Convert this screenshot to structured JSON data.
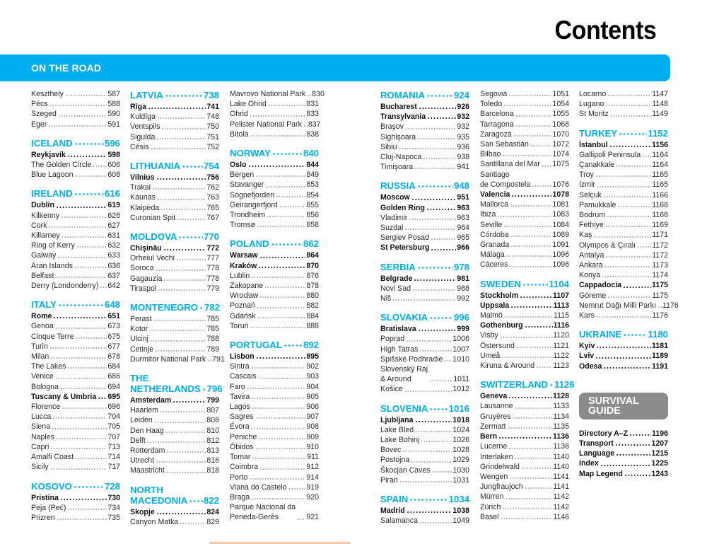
{
  "page_title": "Contents",
  "banner": {
    "label": "ON THE ROAD",
    "color": "#00aeef"
  },
  "survival_color": "#8a8b8c",
  "columns": [
    [
      {
        "name": "Keszthely",
        "page": "587"
      },
      {
        "name": "Pécs",
        "page": "588"
      },
      {
        "name": "Szeged",
        "page": "590"
      },
      {
        "name": "Eger",
        "page": "591"
      },
      {
        "section": "ICELAND",
        "page": "596"
      },
      {
        "name": "Reykjavík",
        "page": "598",
        "bold": true
      },
      {
        "name": "The Golden Circle",
        "page": "606"
      },
      {
        "name": "Blue Lagoon",
        "page": "608"
      },
      {
        "section": "IRELAND",
        "page": "616"
      },
      {
        "name": "Dublin",
        "page": "619",
        "bold": true
      },
      {
        "name": "Kilkenny",
        "page": "626"
      },
      {
        "name": "Cork",
        "page": "627"
      },
      {
        "name": "Killarney",
        "page": "631"
      },
      {
        "name": "Ring of Kerry",
        "page": "632"
      },
      {
        "name": "Galway",
        "page": "633"
      },
      {
        "name": "Aran Islands",
        "page": "636"
      },
      {
        "name": "Belfast",
        "page": "637"
      },
      {
        "name": "Derry (Londonderry)",
        "page": "642"
      },
      {
        "section": "ITALY",
        "page": "648"
      },
      {
        "name": "Rome",
        "page": "651",
        "bold": true
      },
      {
        "name": "Genoa",
        "page": "673"
      },
      {
        "name": "Cinque Terre",
        "page": "675"
      },
      {
        "name": "Turin",
        "page": "677"
      },
      {
        "name": "Milan",
        "page": "678"
      },
      {
        "name": "The Lakes",
        "page": "684"
      },
      {
        "name": "Venice",
        "page": "686"
      },
      {
        "name": "Bologna",
        "page": "694"
      },
      {
        "name": "Tuscany & Umbria",
        "page": "695",
        "bold": true
      },
      {
        "name": "Florence",
        "page": "696"
      },
      {
        "name": "Lucca",
        "page": "704"
      },
      {
        "name": "Siena",
        "page": "705"
      },
      {
        "name": "Naples",
        "page": "707"
      },
      {
        "name": "Capri",
        "page": "713"
      },
      {
        "name": "Amalfi Coast",
        "page": "714"
      },
      {
        "name": "Sicily",
        "page": "717"
      },
      {
        "section": "KOSOVO",
        "page": "728"
      },
      {
        "name": "Pristina",
        "page": "730",
        "bold": true
      },
      {
        "name": "Peja (Peć)",
        "page": "734"
      },
      {
        "name": "Prizren",
        "page": "735"
      }
    ],
    [
      {
        "section": "LATVIA",
        "page": "738"
      },
      {
        "name": "Rīga",
        "page": "741",
        "bold": true
      },
      {
        "name": "Kuldīga",
        "page": "748"
      },
      {
        "name": "Ventspils",
        "page": "750"
      },
      {
        "name": "Sigulda",
        "page": "751"
      },
      {
        "name": "Cēsis",
        "page": "752"
      },
      {
        "section": "LITHUANIA",
        "page": "754"
      },
      {
        "name": "Vilnius",
        "page": "756",
        "bold": true
      },
      {
        "name": "Trakai",
        "page": "762"
      },
      {
        "name": "Kaunas",
        "page": "763"
      },
      {
        "name": "Klaipėda",
        "page": "765"
      },
      {
        "name": "Curonian Spit",
        "page": "767"
      },
      {
        "section": "MOLDOVA",
        "page": "770"
      },
      {
        "name": "Chişinău",
        "page": "772",
        "bold": true
      },
      {
        "name": "Orheiul Vechi",
        "page": "777"
      },
      {
        "name": "Soroca",
        "page": "778"
      },
      {
        "name": "Gagauzia",
        "page": "778"
      },
      {
        "name": "Tiraspol",
        "page": "779"
      },
      {
        "section": "MONTENEGRO",
        "page": "782"
      },
      {
        "name": "Perast",
        "page": "785"
      },
      {
        "name": "Kotor",
        "page": "785"
      },
      {
        "name": "Ulcinj",
        "page": "788"
      },
      {
        "name": "Cetinje",
        "page": "789"
      },
      {
        "name": "Durmitor National Park",
        "page": "791"
      },
      {
        "section": "THE\nNETHERLANDS",
        "page": "796"
      },
      {
        "name": "Amsterdam",
        "page": "799",
        "bold": true
      },
      {
        "name": "Haarlem",
        "page": "807"
      },
      {
        "name": "Leiden",
        "page": "808"
      },
      {
        "name": "Den Haag",
        "page": "810"
      },
      {
        "name": "Delft",
        "page": "812"
      },
      {
        "name": "Rotterdam",
        "page": "813"
      },
      {
        "name": "Utrecht",
        "page": "816"
      },
      {
        "name": "Maastricht",
        "page": "818"
      },
      {
        "section": "NORTH\nMACEDONIA",
        "page": "822"
      },
      {
        "name": "Skopje",
        "page": "824",
        "bold": true
      },
      {
        "name": "Canyon Matka",
        "page": "829"
      }
    ],
    [
      {
        "name": "Mavrovo National Park",
        "page": "830"
      },
      {
        "name": "Lake Ohrid",
        "page": "831"
      },
      {
        "name": "Ohrid",
        "page": "833"
      },
      {
        "name": "Pelister National Park",
        "page": "837"
      },
      {
        "name": "Bitola",
        "page": "838"
      },
      {
        "section": "NORWAY",
        "page": "840"
      },
      {
        "name": "Oslo",
        "page": "844",
        "bold": true
      },
      {
        "name": "Bergen",
        "page": "849"
      },
      {
        "name": "Stavanger",
        "page": "853"
      },
      {
        "name": "Sognefjorden",
        "page": "854"
      },
      {
        "name": "Geirangerfjord",
        "page": "855"
      },
      {
        "name": "Trondheim",
        "page": "856"
      },
      {
        "name": "Tromsø",
        "page": "858"
      },
      {
        "section": "POLAND",
        "page": "862"
      },
      {
        "name": "Warsaw",
        "page": "864",
        "bold": true
      },
      {
        "name": "Kraków",
        "page": "870",
        "bold": true
      },
      {
        "name": "Lublin",
        "page": "876"
      },
      {
        "name": "Zakopane",
        "page": "878"
      },
      {
        "name": "Wrocław",
        "page": "880"
      },
      {
        "name": "Poznań",
        "page": "882"
      },
      {
        "name": "Gdańsk",
        "page": "884"
      },
      {
        "name": "Toruń",
        "page": "888"
      },
      {
        "section": "PORTUGAL",
        "page": "892"
      },
      {
        "name": "Lisbon",
        "page": "895",
        "bold": true
      },
      {
        "name": "Sintra",
        "page": "902"
      },
      {
        "name": "Cascais",
        "page": "903"
      },
      {
        "name": "Faro",
        "page": "904"
      },
      {
        "name": "Tavira",
        "page": "905"
      },
      {
        "name": "Lagos",
        "page": "906"
      },
      {
        "name": "Sagres",
        "page": "907"
      },
      {
        "name": "Évora",
        "page": "908"
      },
      {
        "name": "Peniche",
        "page": "909"
      },
      {
        "name": "Óbidos",
        "page": "910"
      },
      {
        "name": "Tomar",
        "page": "911"
      },
      {
        "name": "Coimbra",
        "page": "912"
      },
      {
        "name": "Porto",
        "page": "914"
      },
      {
        "name": "Viana do Castelo",
        "page": "919"
      },
      {
        "name": "Braga",
        "page": "920"
      },
      {
        "name": "Parque Nacional da\nPeneda-Gerês",
        "page": "921"
      }
    ],
    [
      {
        "section": "ROMANIA",
        "page": "924"
      },
      {
        "name": "Bucharest",
        "page": "926",
        "bold": true
      },
      {
        "name": "Transylvania",
        "page": "932",
        "bold": true
      },
      {
        "name": "Braşov",
        "page": "932"
      },
      {
        "name": "Sighişoara",
        "page": "935"
      },
      {
        "name": "Sibiu",
        "page": "936"
      },
      {
        "name": "Cluj-Napoca",
        "page": "938"
      },
      {
        "name": "Timişoara",
        "page": "941"
      },
      {
        "section": "RUSSIA",
        "page": "948"
      },
      {
        "name": "Moscow",
        "page": "951",
        "bold": true
      },
      {
        "name": "Golden Ring",
        "page": "963",
        "bold": true
      },
      {
        "name": "Vladimir",
        "page": "963"
      },
      {
        "name": "Suzdal",
        "page": "964"
      },
      {
        "name": "Sergiev Posad",
        "page": "965"
      },
      {
        "name": "St Petersburg",
        "page": "966",
        "bold": true
      },
      {
        "section": "SERBIA",
        "page": "978"
      },
      {
        "name": "Belgrade",
        "page": "981",
        "bold": true
      },
      {
        "name": "Novi Sad",
        "page": "988"
      },
      {
        "name": "Niš",
        "page": "992"
      },
      {
        "section": "SLOVAKIA",
        "page": "996"
      },
      {
        "name": "Bratislava",
        "page": "999",
        "bold": true
      },
      {
        "name": "Poprad",
        "page": "1006"
      },
      {
        "name": "High Tatras",
        "page": "1007"
      },
      {
        "name": "Spišské Podhradie",
        "page": "1010"
      },
      {
        "name": "Slovenský Raj\n& Around",
        "page": "1011"
      },
      {
        "name": "Košice",
        "page": "1012"
      },
      {
        "section": "SLOVENIA",
        "page": "1016"
      },
      {
        "name": "Ljubljana",
        "page": "1018",
        "bold": true
      },
      {
        "name": "Lake Bled",
        "page": "1024"
      },
      {
        "name": "Lake Bohinj",
        "page": "1026"
      },
      {
        "name": "Bovec",
        "page": "1028"
      },
      {
        "name": "Postojna",
        "page": "1029"
      },
      {
        "name": "Škocjan Caves",
        "page": "1030"
      },
      {
        "name": "Piran",
        "page": "1031"
      },
      {
        "section": "SPAIN",
        "page": "1034"
      },
      {
        "name": "Madrid",
        "page": "1038",
        "bold": true
      },
      {
        "name": "Salamanca",
        "page": "1049"
      }
    ],
    [
      {
        "name": "Segovia",
        "page": "1051"
      },
      {
        "name": "Toledo",
        "page": "1054"
      },
      {
        "name": "Barcelona",
        "page": "1055"
      },
      {
        "name": "Tarragona",
        "page": "1068"
      },
      {
        "name": "Zaragoza",
        "page": "1070"
      },
      {
        "name": "San Sebastián",
        "page": "1072"
      },
      {
        "name": "Bilbao",
        "page": "1074"
      },
      {
        "name": "Santillana del Mar",
        "page": "1075"
      },
      {
        "name": "Santiago\nde Compostela",
        "page": "1076"
      },
      {
        "name": "Valencia",
        "page": "1078",
        "bold": true
      },
      {
        "name": "Mallorca",
        "page": "1081"
      },
      {
        "name": "Ibiza",
        "page": "1083"
      },
      {
        "name": "Seville",
        "page": "1084"
      },
      {
        "name": "Córdoba",
        "page": "1089"
      },
      {
        "name": "Granada",
        "page": "1091"
      },
      {
        "name": "Málaga",
        "page": "1096"
      },
      {
        "name": "Cáceres",
        "page": "1098"
      },
      {
        "section": "SWEDEN",
        "page": "1104"
      },
      {
        "name": "Stockholm",
        "page": "1107",
        "bold": true
      },
      {
        "name": "Uppsala",
        "page": "1113",
        "bold": true
      },
      {
        "name": "Malmö",
        "page": "1115"
      },
      {
        "name": "Gothenburg",
        "page": "1116",
        "bold": true
      },
      {
        "name": "Visby",
        "page": "1120"
      },
      {
        "name": "Östersund",
        "page": "1121"
      },
      {
        "name": "Umeå",
        "page": "1122"
      },
      {
        "name": "Kiruna & Around",
        "page": "1123"
      },
      {
        "section": "SWITZERLAND",
        "page": "1126"
      },
      {
        "name": "Geneva",
        "page": "1128",
        "bold": true
      },
      {
        "name": "Lausanne",
        "page": "1133"
      },
      {
        "name": "Gruyères",
        "page": "1134"
      },
      {
        "name": "Zermatt",
        "page": "1135"
      },
      {
        "name": "Bern",
        "page": "1136",
        "bold": true
      },
      {
        "name": "Lucerne",
        "page": "1138"
      },
      {
        "name": "Interlaken",
        "page": "1140"
      },
      {
        "name": "Grindelwald",
        "page": "1140"
      },
      {
        "name": "Wengen",
        "page": "1141"
      },
      {
        "name": "Jungfraujoch",
        "page": "1141"
      },
      {
        "name": "Mürren",
        "page": "1142"
      },
      {
        "name": "Zürich",
        "page": "1142"
      },
      {
        "name": "Basel",
        "page": "1146"
      }
    ],
    [
      {
        "name": "Locarno",
        "page": "1147"
      },
      {
        "name": "Lugano",
        "page": "1148"
      },
      {
        "name": "St Moritz",
        "page": "1149"
      },
      {
        "section": "TURKEY",
        "page": "1152"
      },
      {
        "name": "İstanbul",
        "page": "1156",
        "bold": true
      },
      {
        "name": "Gallipoli Peninsula",
        "page": "1164"
      },
      {
        "name": "Çanakkale",
        "page": "1164"
      },
      {
        "name": "Troy",
        "page": "1165"
      },
      {
        "name": "İzmir",
        "page": "1165"
      },
      {
        "name": "Selçuk",
        "page": "1166"
      },
      {
        "name": "Pamukkale",
        "page": "1168"
      },
      {
        "name": "Bodrum",
        "page": "1168"
      },
      {
        "name": "Fethiye",
        "page": "1169"
      },
      {
        "name": "Kaş",
        "page": "1171"
      },
      {
        "name": "Olympos & Çıralı",
        "page": "1172"
      },
      {
        "name": "Antalya",
        "page": "1172"
      },
      {
        "name": "Ankara",
        "page": "1173"
      },
      {
        "name": "Konya",
        "page": "1174"
      },
      {
        "name": "Cappadocia",
        "page": "1175",
        "bold": true
      },
      {
        "name": "Göreme",
        "page": "1175"
      },
      {
        "name": "Nemrut Dağı Milli Parkı",
        "page": "1176"
      },
      {
        "name": "Kars",
        "page": "1176"
      },
      {
        "section": "UKRAINE",
        "page": "1180"
      },
      {
        "name": "Kyiv",
        "page": "1181",
        "bold": true
      },
      {
        "name": "Lviv",
        "page": "1189",
        "bold": true
      },
      {
        "name": "Odesa",
        "page": "1191",
        "bold": true
      },
      {
        "part": "SURVIVAL\nGUIDE"
      },
      {
        "name": "Directory A–Z",
        "page": "1196",
        "bold": true
      },
      {
        "name": "Transport",
        "page": "1207",
        "bold": true
      },
      {
        "name": "Language",
        "page": "1215",
        "bold": true
      },
      {
        "name": "Index",
        "page": "1225",
        "bold": true
      },
      {
        "name": "Map Legend",
        "page": "1243",
        "bold": true
      }
    ]
  ]
}
